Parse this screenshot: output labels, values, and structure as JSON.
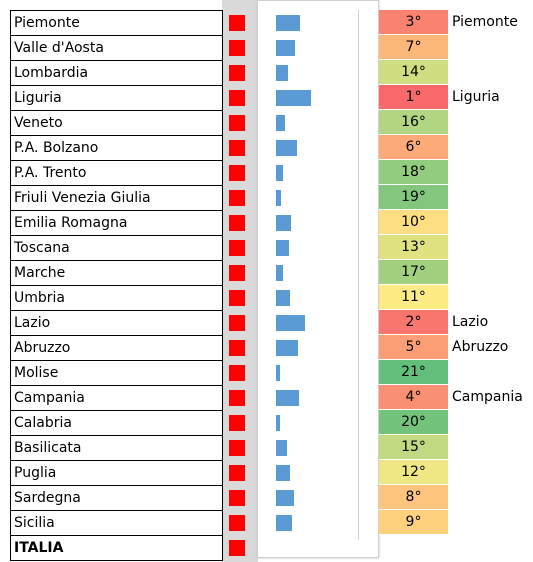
{
  "bar_xlim": [
    0,
    80
  ],
  "rows": [
    {
      "name": "Piemonte",
      "bar": 23,
      "rank": "3°",
      "color": "#f98370",
      "note": "Piemonte"
    },
    {
      "name": "Valle d'Aosta",
      "bar": 19,
      "rank": "7°",
      "color": "#fcb77a"
    },
    {
      "name": "Lombardia",
      "bar": 12,
      "rank": "14°",
      "color": "#d0de81"
    },
    {
      "name": "Liguria",
      "bar": 34,
      "rank": "1°",
      "color": "#f8696b",
      "note": "Liguria"
    },
    {
      "name": "Veneto",
      "bar": 9,
      "rank": "16°",
      "color": "#b1d580"
    },
    {
      "name": "P.A. Bolzano",
      "bar": 20,
      "rank": "6°",
      "color": "#fcaa78"
    },
    {
      "name": "P.A. Trento",
      "bar": 7,
      "rank": "18°",
      "color": "#92cc7e"
    },
    {
      "name": "Friuli Venezia Giulia",
      "bar": 5,
      "rank": "19°",
      "color": "#82c77d"
    },
    {
      "name": "Emilia Romagna",
      "bar": 15,
      "rank": "10°",
      "color": "#fede82"
    },
    {
      "name": "Toscana",
      "bar": 13,
      "rank": "13°",
      "color": "#e0e282"
    },
    {
      "name": "Marche",
      "bar": 7,
      "rank": "17°",
      "color": "#a1d07f"
    },
    {
      "name": "Umbria",
      "bar": 14,
      "rank": "11°",
      "color": "#ffeb84"
    },
    {
      "name": "Lazio",
      "bar": 28,
      "rank": "2°",
      "color": "#f9766e",
      "note": "Lazio"
    },
    {
      "name": "Abruzzo",
      "bar": 21,
      "rank": "5°",
      "color": "#fb9d75",
      "note": "Abruzzo"
    },
    {
      "name": "Molise",
      "bar": 4,
      "rank": "21°",
      "color": "#63be7b"
    },
    {
      "name": "Campania",
      "bar": 22,
      "rank": "4°",
      "color": "#fa9073",
      "note": "Campania"
    },
    {
      "name": "Calabria",
      "bar": 4,
      "rank": "20°",
      "color": "#73c37c"
    },
    {
      "name": "Basilicata",
      "bar": 11,
      "rank": "15°",
      "color": "#c1d980"
    },
    {
      "name": "Puglia",
      "bar": 14,
      "rank": "12°",
      "color": "#efe783"
    },
    {
      "name": "Sardegna",
      "bar": 18,
      "rank": "8°",
      "color": "#fdc47d"
    },
    {
      "name": "Sicilia",
      "bar": 16,
      "rank": "9°",
      "color": "#fed17f"
    },
    {
      "name": "ITALIA"
    }
  ]
}
